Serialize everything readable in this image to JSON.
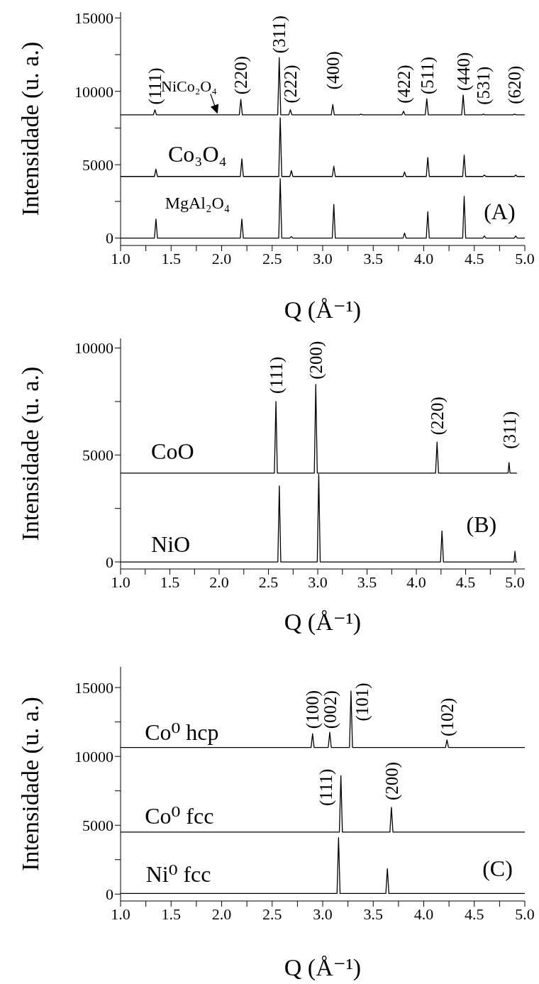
{
  "chart_data": [
    {
      "type": "line",
      "xlabel": "Q (Å⁻¹)",
      "ylabel": "Intensidade (u. a.)",
      "xlim": [
        1,
        5
      ],
      "ylim": [
        -500,
        15400
      ],
      "marker": "none",
      "xticks": [
        {
          "value": 1,
          "label": "1.0"
        },
        {
          "value": 1.25,
          "label": null
        },
        {
          "value": 1.5,
          "label": "1.5"
        },
        {
          "value": 1.75,
          "label": null
        },
        {
          "value": 2,
          "label": "2.0"
        },
        {
          "value": 2.25,
          "label": null
        },
        {
          "value": 2.5,
          "label": "2.5"
        },
        {
          "value": 2.75,
          "label": null
        },
        {
          "value": 3,
          "label": "3.0"
        },
        {
          "value": 3.25,
          "label": null
        },
        {
          "value": 3.5,
          "label": "3.5"
        },
        {
          "value": 3.75,
          "label": null
        },
        {
          "value": 4,
          "label": "4.0"
        },
        {
          "value": 4.25,
          "label": null
        },
        {
          "value": 4.5,
          "label": "4.5"
        },
        {
          "value": 4.75,
          "label": null
        },
        {
          "value": 5,
          "label": "5.0"
        }
      ],
      "yticks": [
        0,
        {
          "value": 2500,
          "label": null
        },
        5000,
        {
          "value": 7500,
          "label": null
        },
        10000,
        {
          "value": 12500,
          "label": null
        },
        15000
      ],
      "series": [
        {
          "name": "NiCo₂O₄",
          "color": "#000000",
          "x": [
            1.0,
            1.325,
            1.34,
            1.355,
            2.175,
            2.19,
            2.205,
            2.555,
            2.57,
            2.585,
            2.665,
            2.68,
            2.695,
            3.085,
            3.1,
            3.115,
            3.365,
            3.38,
            3.395,
            3.785,
            3.8,
            3.815,
            4.015,
            4.03,
            4.045,
            4.375,
            4.39,
            4.405,
            4.575,
            4.59,
            4.605,
            4.885,
            4.9,
            4.915,
            5.0
          ],
          "values": [
            8400,
            8400,
            8750,
            8400,
            8400,
            9450,
            8400,
            8400,
            12300,
            8400,
            8400,
            8750,
            8400,
            8400,
            9100,
            8400,
            8400,
            8450,
            8400,
            8400,
            8650,
            8400,
            8400,
            9500,
            8400,
            8400,
            9750,
            8400,
            8400,
            8450,
            8400,
            8400,
            8450,
            8400,
            8400
          ]
        },
        {
          "name": "Co₃O₄",
          "color": "#000000",
          "x": [
            1.0,
            1.335,
            1.35,
            1.365,
            2.185,
            2.2,
            2.215,
            2.565,
            2.58,
            2.595,
            2.675,
            2.69,
            2.705,
            3.095,
            3.11,
            3.125,
            3.795,
            3.81,
            3.825,
            4.025,
            4.04,
            4.055,
            4.385,
            4.4,
            4.415,
            4.585,
            4.6,
            4.615,
            4.895,
            4.91,
            4.925,
            5.0
          ],
          "values": [
            4200,
            4200,
            4700,
            4200,
            4200,
            5400,
            4200,
            4200,
            8200,
            4200,
            4200,
            4600,
            4200,
            4200,
            4900,
            4200,
            4200,
            4500,
            4200,
            4200,
            5500,
            4200,
            4200,
            5650,
            4200,
            4200,
            4300,
            4200,
            4200,
            4300,
            4200,
            4200
          ]
        },
        {
          "name": "MgAl₂O₄",
          "color": "#000000",
          "x": [
            1.0,
            1.335,
            1.35,
            1.365,
            2.185,
            2.2,
            2.215,
            2.565,
            2.58,
            2.595,
            2.675,
            2.69,
            2.705,
            3.095,
            3.11,
            3.125,
            3.795,
            3.81,
            3.825,
            4.025,
            4.04,
            4.055,
            4.385,
            4.4,
            4.415,
            4.585,
            4.6,
            4.615,
            4.895,
            4.91,
            4.925,
            5.0
          ],
          "values": [
            0,
            0,
            1300,
            0,
            0,
            1300,
            0,
            0,
            4050,
            0,
            0,
            100,
            0,
            0,
            2300,
            0,
            0,
            350,
            0,
            0,
            1800,
            0,
            0,
            2850,
            0,
            0,
            150,
            0,
            0,
            150,
            0,
            0
          ]
        }
      ],
      "annotations": [
        "(A)",
        {
          "text": "(111)",
          "x": 1.34,
          "y": 8750
        },
        {
          "text": "(220)",
          "x": 2.19,
          "y": 9450
        },
        {
          "text": "(311)",
          "x": 2.57,
          "y": 12300
        },
        {
          "text": "(222)",
          "x": 2.68,
          "y": 8750
        },
        {
          "text": "(400)",
          "x": 3.1,
          "y": 9100
        },
        {
          "text": "(422)",
          "x": 3.8,
          "y": 8650
        },
        {
          "text": "(511)",
          "x": 4.03,
          "y": 9500
        },
        {
          "text": "(440)",
          "x": 4.39,
          "y": 9750
        },
        {
          "text": "(531)",
          "x": 4.59,
          "y": 8450
        },
        {
          "text": "(620)",
          "x": 4.9,
          "y": 8450
        }
      ]
    },
    {
      "type": "line",
      "xlabel": "Q (Å⁻¹)",
      "ylabel": "Intensidade (u. a.)",
      "xlim": [
        1,
        5.1
      ],
      "ylim": [
        -330,
        10450
      ],
      "marker": "none",
      "xticks": [
        {
          "value": 1,
          "label": "1.0"
        },
        {
          "value": 1.25,
          "label": null
        },
        {
          "value": 1.5,
          "label": "1.5"
        },
        {
          "value": 1.75,
          "label": null
        },
        {
          "value": 2,
          "label": "2.0"
        },
        {
          "value": 2.25,
          "label": null
        },
        {
          "value": 2.5,
          "label": "2.5"
        },
        {
          "value": 2.75,
          "label": null
        },
        {
          "value": 3,
          "label": "3.0"
        },
        {
          "value": 3.25,
          "label": null
        },
        {
          "value": 3.5,
          "label": "3.5"
        },
        {
          "value": 3.75,
          "label": null
        },
        {
          "value": 4,
          "label": "4.0"
        },
        {
          "value": 4.25,
          "label": null
        },
        {
          "value": 4.5,
          "label": "4.5"
        },
        {
          "value": 4.75,
          "label": null
        },
        {
          "value": 5,
          "label": "5.0"
        }
      ],
      "yticks": [
        0,
        {
          "value": 2500,
          "label": null
        },
        5000,
        {
          "value": 7500,
          "label": null
        },
        10000
      ],
      "series": [
        {
          "name": "CoO",
          "color": "#000000",
          "x": [
            1.0,
            2.56,
            2.576,
            2.59,
            2.965,
            2.98,
            2.995,
            4.195,
            4.21,
            4.225,
            4.93,
            4.94,
            4.95,
            5.02
          ],
          "values": [
            4150,
            4150,
            7500,
            4150,
            4150,
            8300,
            4150,
            4150,
            5600,
            4150,
            4150,
            4650,
            4150,
            4150
          ]
        },
        {
          "name": "NiO",
          "color": "#000000",
          "x": [
            1.0,
            2.595,
            2.61,
            2.625,
            2.995,
            3.01,
            3.025,
            4.245,
            4.26,
            4.275,
            4.99,
            5.0,
            5.01,
            5.02
          ],
          "values": [
            0,
            0,
            3550,
            0,
            0,
            4100,
            0,
            0,
            1450,
            0,
            0,
            500,
            0,
            0
          ]
        }
      ],
      "annotations": [
        "(B)",
        {
          "text": "(111)",
          "x": 2.576,
          "y": 7500
        },
        {
          "text": "(200)",
          "x": 2.98,
          "y": 8300
        },
        {
          "text": "(220)",
          "x": 4.21,
          "y": 5600
        },
        {
          "text": "(311)",
          "x": 4.94,
          "y": 4650
        }
      ]
    },
    {
      "type": "line",
      "xlabel": "Q (Å⁻¹)",
      "ylabel": "Intensidade (u. a.)",
      "xlim": [
        1,
        5
      ],
      "ylim": [
        -500,
        16500
      ],
      "marker": "none",
      "xticks": [
        {
          "value": 1,
          "label": "1.0"
        },
        {
          "value": 1.25,
          "label": null
        },
        {
          "value": 1.5,
          "label": "1.5"
        },
        {
          "value": 1.75,
          "label": null
        },
        {
          "value": 2,
          "label": "2.0"
        },
        {
          "value": 2.25,
          "label": null
        },
        {
          "value": 2.5,
          "label": "2.5"
        },
        {
          "value": 2.75,
          "label": null
        },
        {
          "value": 3,
          "label": "3.0"
        },
        {
          "value": 3.25,
          "label": null
        },
        {
          "value": 3.5,
          "label": "3.5"
        },
        {
          "value": 3.75,
          "label": null
        },
        {
          "value": 4,
          "label": "4.0"
        },
        {
          "value": 4.25,
          "label": null
        },
        {
          "value": 4.5,
          "label": "4.5"
        },
        {
          "value": 4.75,
          "label": null
        },
        {
          "value": 5,
          "label": "5.0"
        }
      ],
      "yticks": [
        0,
        {
          "value": 2500,
          "label": null
        },
        5000,
        {
          "value": 7500,
          "label": null
        },
        10000,
        {
          "value": 12500,
          "label": null
        },
        15000
      ],
      "series": [
        {
          "name": "Co⁰ hcp",
          "color": "#000000",
          "x": [
            1.0,
            2.885,
            2.9,
            2.915,
            3.055,
            3.07,
            3.085,
            3.265,
            3.28,
            3.295,
            4.215,
            4.23,
            4.245,
            5.0
          ],
          "values": [
            10650,
            10650,
            11650,
            10650,
            10650,
            11750,
            10650,
            10650,
            14750,
            10650,
            10650,
            11200,
            10650,
            10650
          ]
        },
        {
          "name": "Co⁰ fcc",
          "color": "#000000",
          "x": [
            1.0,
            3.165,
            3.18,
            3.195,
            3.665,
            3.68,
            3.695,
            5.0
          ],
          "values": [
            4500,
            4500,
            8600,
            4500,
            4500,
            6300,
            4500,
            4500
          ]
        },
        {
          "name": "Ni⁰ fcc",
          "color": "#000000",
          "x": [
            1.0,
            3.142,
            3.157,
            3.172,
            3.625,
            3.64,
            3.655,
            5.0
          ],
          "values": [
            50,
            50,
            4100,
            50,
            50,
            1850,
            50,
            50
          ]
        }
      ],
      "annotations": [
        "(C)",
        {
          "text": "(100)",
          "x": 2.9,
          "y": 11650
        },
        {
          "text": "(002)",
          "x": 3.07,
          "y": 11750
        },
        {
          "text": "(101)",
          "x": 3.39,
          "y": 10650
        },
        {
          "text": "(102)",
          "x": 4.23,
          "y": 11200
        },
        {
          "text": "(111)",
          "x": 3.03,
          "y": 4500
        },
        {
          "text": "(200)",
          "x": 3.68,
          "y": 6300
        }
      ]
    }
  ]
}
